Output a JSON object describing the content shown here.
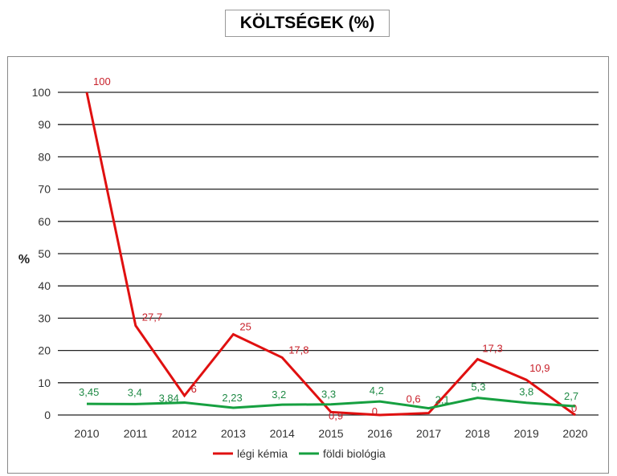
{
  "chart_data": {
    "type": "line",
    "title": "KÖLTSÉGEK (%)",
    "xlabel": "",
    "ylabel": "%",
    "ylim": [
      0,
      100
    ],
    "yticks": [
      0,
      10,
      20,
      30,
      40,
      50,
      60,
      70,
      80,
      90,
      100
    ],
    "grid": true,
    "legend_position": "bottom",
    "categories": [
      "2010",
      "2011",
      "2012",
      "2013",
      "2014",
      "2015",
      "2016",
      "2017",
      "2018",
      "2019",
      "2020"
    ],
    "series": [
      {
        "name": "légi kémia",
        "color": "#e01010",
        "values": [
          100,
          27.7,
          6,
          25,
          17.8,
          0.9,
          0,
          0.6,
          17.3,
          10.9,
          0
        ],
        "labels": [
          "100",
          "27,7",
          "6",
          "25",
          "17,8",
          "0,9",
          "0",
          "0,6",
          "17,3",
          "10,9",
          "0"
        ]
      },
      {
        "name": "földi biológia",
        "color": "#16a040",
        "values": [
          3.45,
          3.4,
          3.84,
          2.23,
          3.2,
          3.3,
          4.2,
          2.1,
          5.3,
          3.8,
          2.7
        ],
        "labels": [
          "3,45",
          "3,4",
          "3,84",
          "2,23",
          "3,2",
          "3,3",
          "4,2",
          "2,1",
          "5,3",
          "3,8",
          "2,7"
        ]
      }
    ]
  }
}
